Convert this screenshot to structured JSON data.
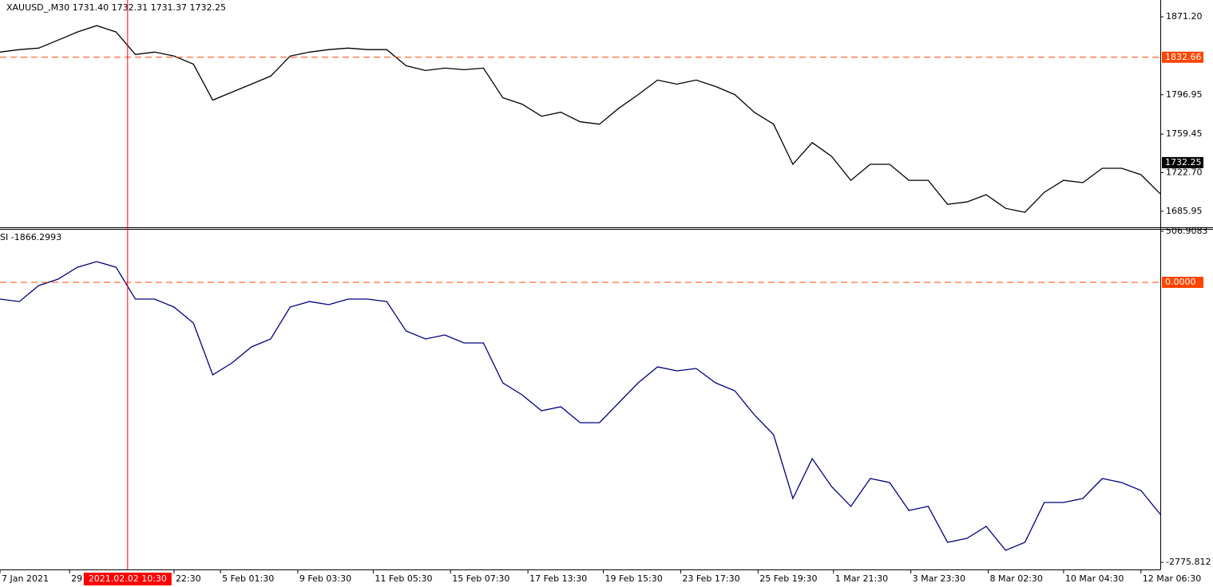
{
  "chart_data": [
    {
      "type": "line",
      "title": "XAUUSD_,M30  1731.40 1732.31 1731.37 1732.25",
      "color": "#000000",
      "xlim": [
        0,
        60
      ],
      "values": [
        1837.6,
        1839.9,
        1841.4,
        1849.0,
        1856.7,
        1862.8,
        1856.7,
        1835.3,
        1837.6,
        1833.8,
        1826.1,
        1791.8,
        1799.4,
        1807.0,
        1814.7,
        1833.8,
        1837.6,
        1839.9,
        1841.4,
        1839.9,
        1839.9,
        1824.6,
        1820.0,
        1822.3,
        1820.8,
        1822.3,
        1794.1,
        1788.0,
        1776.5,
        1780.3,
        1771.2,
        1768.9,
        1784.1,
        1797.1,
        1810.9,
        1807.0,
        1810.9,
        1804.8,
        1797.1,
        1780.3,
        1768.9,
        1730.7,
        1751.3,
        1738.3,
        1715.4,
        1730.7,
        1730.7,
        1715.4,
        1715.4,
        1692.5,
        1694.8,
        1701.7,
        1688.7,
        1684.9,
        1704.0,
        1715.4,
        1713.2,
        1726.9,
        1726.9,
        1720.8,
        1702.5
      ],
      "ylim": [
        1671.4,
        1887.2
      ],
      "yticks": [
        {
          "value": 1871.2,
          "label": "1871.20"
        },
        1796.95,
        1759.45,
        {
          "value": 1722.7,
          "label": "1722.70"
        },
        1685.95
      ],
      "hline": {
        "value": 1832.66,
        "color": "#ff4500"
      },
      "current_price": 1732.25
    },
    {
      "type": "line",
      "title": "SI -1866.2993",
      "color": "#000080",
      "xlim": [
        0,
        60
      ],
      "values": [
        -166,
        -190,
        -32,
        32,
        150,
        206,
        150,
        -166,
        -166,
        -245,
        -403,
        -917,
        -798,
        -640,
        -561,
        -245,
        -190,
        -221,
        -166,
        -166,
        -190,
        -482,
        -561,
        -522,
        -601,
        -601,
        -996,
        -1115,
        -1273,
        -1233,
        -1391,
        -1391,
        -1194,
        -996,
        -838,
        -877,
        -854,
        -996,
        -1075,
        -1312,
        -1510,
        -2142,
        -1747,
        -2024,
        -2221,
        -1945,
        -1984,
        -2261,
        -2221,
        -2577,
        -2538,
        -2419,
        -2656,
        -2577,
        -2182,
        -2182,
        -2142,
        -1945,
        -1984,
        -2063,
        -2300
      ],
      "ylim": [
        -2846,
        522
      ],
      "yticks": [
        506.9083,
        -2775.812
      ],
      "hline": {
        "value": 0,
        "label": "0.0000",
        "color": "#ff4500"
      },
      "xticks": [
        {
          "value": 0,
          "label": "7 Jan 2021"
        },
        {
          "value": 3.6,
          "label": "29"
        },
        {
          "value": 9.0,
          "label": "22:30"
        },
        {
          "value": 11.4,
          "label": "5 Feb 01:30"
        },
        {
          "value": 15.4,
          "label": "9 Feb 03:30"
        },
        {
          "value": 19.3,
          "label": "11 Feb 05:30"
        },
        {
          "value": 23.3,
          "label": "15 Feb 07:30"
        },
        {
          "value": 27.3,
          "label": "17 Feb 13:30"
        },
        {
          "value": 31.2,
          "label": "19 Feb 15:30"
        },
        {
          "value": 35.2,
          "label": "23 Feb 17:30"
        },
        {
          "value": 39.2,
          "label": "25 Feb 19:30"
        },
        {
          "value": 43.1,
          "label": "1 Mar 21:30"
        },
        {
          "value": 47.1,
          "label": "3 Mar 23:30"
        },
        {
          "value": 51.1,
          "label": "8 Mar 02:30"
        },
        {
          "value": 55.0,
          "label": "10 Mar 04:30"
        },
        {
          "value": 59.0,
          "label": "12 Mar 06:30"
        }
      ],
      "crosshair": {
        "value": 6.6,
        "label": "2021.02.02 10:30",
        "color": "#ff0000"
      }
    }
  ]
}
